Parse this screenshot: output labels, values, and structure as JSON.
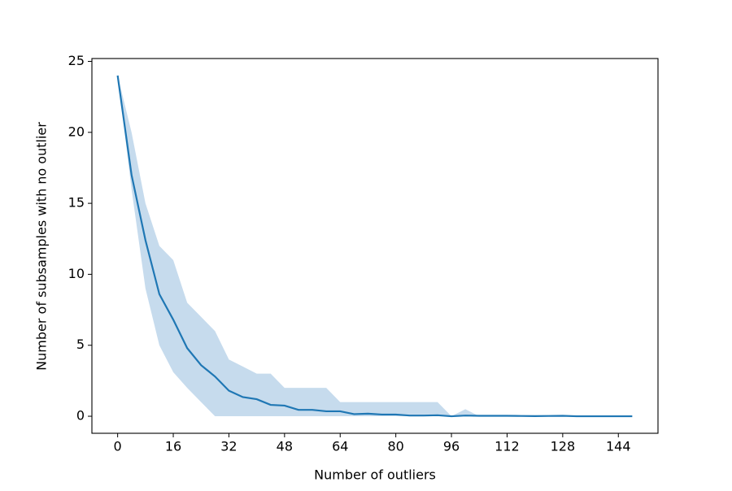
{
  "chart_data": {
    "type": "line",
    "xlabel": "Number of outliers",
    "ylabel": "Number of subsamples with no outlier",
    "x": [
      0,
      4,
      8,
      12,
      16,
      20,
      24,
      28,
      32,
      36,
      40,
      44,
      48,
      52,
      56,
      60,
      64,
      68,
      72,
      76,
      80,
      84,
      88,
      92,
      96,
      100,
      104,
      108,
      112,
      116,
      120,
      124,
      128,
      132,
      136,
      140,
      144,
      148
    ],
    "series": [
      {
        "color": "#1f77b4",
        "values": [
          24,
          17,
          12.4,
          8.6,
          6.8,
          4.8,
          3.6,
          2.8,
          1.8,
          1.35,
          1.2,
          0.8,
          0.75,
          0.45,
          0.45,
          0.35,
          0.35,
          0.15,
          0.18,
          0.12,
          0.12,
          0.05,
          0.05,
          0.07,
          0,
          0.05,
          0.03,
          0.03,
          0.03,
          0.02,
          0.01,
          0.02,
          0.03,
          0,
          0,
          0,
          0,
          0
        ],
        "band_color": "#c6dbed",
        "lower": [
          24,
          16,
          9,
          5,
          3.1,
          2,
          1,
          0,
          0,
          0,
          0,
          0,
          0,
          0,
          0,
          0,
          0,
          0,
          0,
          0,
          0,
          0,
          0,
          0,
          0,
          0,
          0,
          0,
          0,
          0,
          0,
          0,
          0,
          0,
          0,
          0,
          0,
          0
        ],
        "upper": [
          24,
          20,
          15,
          12,
          11,
          8,
          7,
          6,
          4,
          3.5,
          3,
          3,
          2,
          2,
          2,
          2,
          1,
          1,
          1,
          1,
          1,
          1,
          1,
          1,
          0,
          0.5,
          0,
          0,
          0,
          0,
          0,
          0,
          0,
          0,
          0,
          0,
          0,
          0
        ]
      }
    ],
    "xlim": [
      -7.4,
      155.4
    ],
    "xticks": [
      0,
      16,
      32,
      48,
      64,
      80,
      96,
      112,
      128,
      144
    ],
    "ylim": [
      -1.2,
      25.2
    ],
    "yticks": [
      0,
      5,
      10,
      15,
      20,
      25
    ]
  }
}
